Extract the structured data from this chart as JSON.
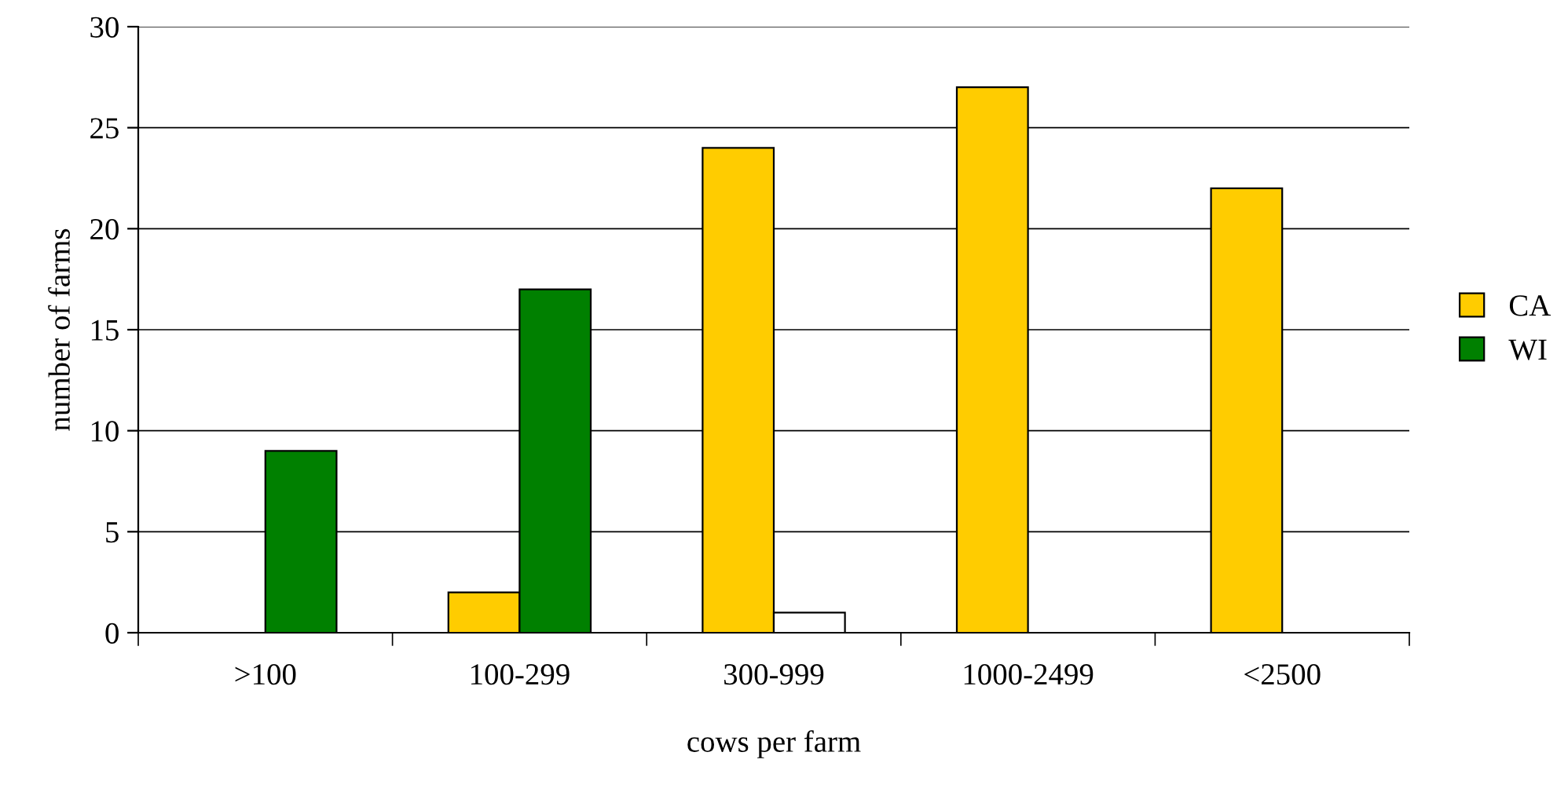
{
  "chart_data": {
    "type": "bar",
    "xlabel": "cows per farm",
    "ylabel": "number of farms",
    "categories": [
      ">100",
      "100-299",
      "300-999",
      "1000-2499",
      "<2500"
    ],
    "series": [
      {
        "name": "CA",
        "color": "#ffcc00",
        "values": [
          null,
          2,
          24,
          27,
          22
        ]
      },
      {
        "name": "WI",
        "color": "#008000",
        "colors": [
          "#008000",
          "#008000",
          "#ffffff",
          "#008000",
          "#008000"
        ],
        "values": [
          9,
          17,
          1,
          null,
          null
        ]
      }
    ],
    "ylim": [
      0,
      30
    ],
    "yticks": [
      0,
      5,
      10,
      15,
      20,
      25,
      30
    ],
    "grid": "y",
    "legend": "right"
  }
}
